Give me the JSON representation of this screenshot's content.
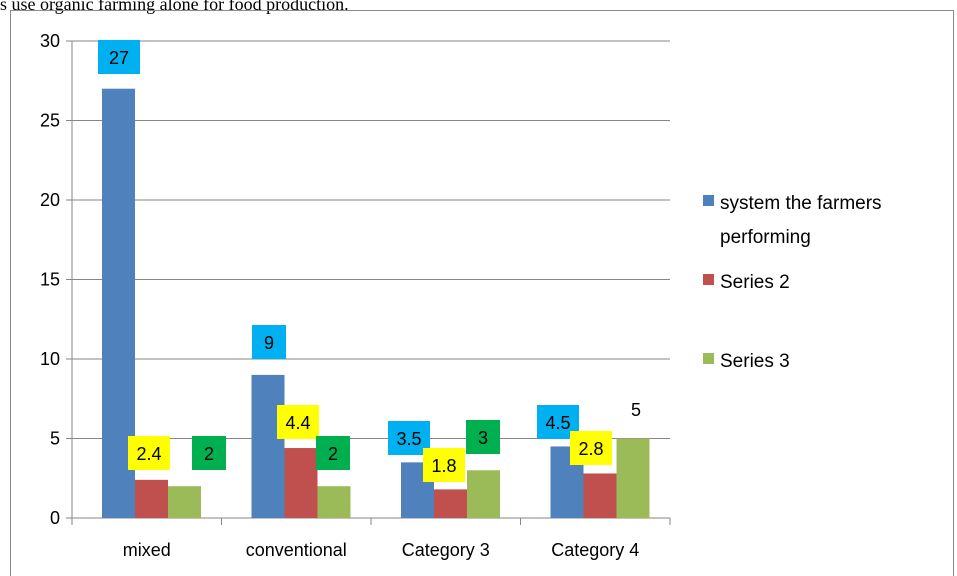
{
  "caption": "s use organic farming alone for food production.",
  "colors": {
    "series1": "#4f81bd",
    "series2": "#c0504d",
    "series3": "#9bbb59",
    "label_box_series1": "#00b0f0",
    "label_box_series2": "#ffff00",
    "label_box_series3": "#00b050",
    "gridline": "#868686"
  },
  "chart_data": {
    "type": "bar",
    "categories": [
      "mixed",
      "conventional",
      "Category 3",
      "Category 4"
    ],
    "series": [
      {
        "name": "system the farmers performing",
        "values": [
          27,
          9,
          3.5,
          4.5
        ],
        "label_box": true
      },
      {
        "name": "Series 2",
        "values": [
          2.4,
          4.4,
          1.8,
          2.8
        ],
        "label_box": true
      },
      {
        "name": "Series 3",
        "values": [
          2,
          2,
          3,
          5
        ],
        "label_box": [
          true,
          true,
          true,
          false
        ]
      }
    ],
    "data_labels": [
      [
        "27",
        "9",
        "3.5",
        "4.5"
      ],
      [
        "2.4",
        "4.4",
        "1.8",
        "2.8"
      ],
      [
        "2",
        "2",
        "3",
        "5"
      ]
    ],
    "ylim": [
      0,
      30
    ],
    "yticks": [
      0,
      5,
      10,
      15,
      20,
      25,
      30
    ],
    "grid": true,
    "legend_position": "right",
    "title": "",
    "xlabel": "",
    "ylabel": ""
  }
}
